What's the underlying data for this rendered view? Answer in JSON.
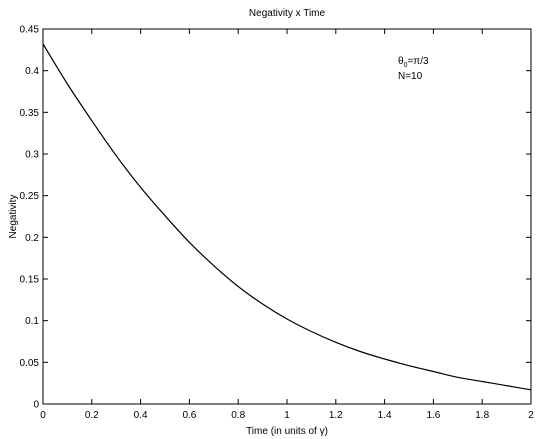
{
  "chart_data": {
    "type": "line",
    "title": "Negativity x Time",
    "xlabel": "Time (in units of γ)",
    "ylabel": "Negativity",
    "xlim": [
      0,
      2
    ],
    "ylim": [
      0,
      0.45
    ],
    "xticks": [
      "0",
      "0.2",
      "0.4",
      "0.6",
      "0.8",
      "1",
      "1.2",
      "1.4",
      "1.6",
      "1.8",
      "2"
    ],
    "yticks": [
      "0",
      "0.05",
      "0.1",
      "0.15",
      "0.2",
      "0.25",
      "0.3",
      "0.35",
      "0.4",
      "0.45"
    ],
    "grid": false,
    "annotations": {
      "theta_symbol": "θ",
      "theta_subscript": "0",
      "theta_value": "=π/3",
      "n_label": "N=10"
    },
    "series": [
      {
        "color": "#000000",
        "x": [
          0,
          0.1,
          0.2,
          0.3,
          0.4,
          0.5,
          0.6,
          0.7,
          0.8,
          0.9,
          1.0,
          1.1,
          1.2,
          1.3,
          1.4,
          1.5,
          1.6,
          1.7,
          1.8,
          1.9,
          2.0
        ],
        "y": [
          0.432,
          0.384,
          0.34,
          0.298,
          0.26,
          0.226,
          0.194,
          0.166,
          0.141,
          0.12,
          0.102,
          0.087,
          0.074,
          0.063,
          0.054,
          0.046,
          0.039,
          0.032,
          0.027,
          0.022,
          0.017
        ]
      }
    ]
  }
}
